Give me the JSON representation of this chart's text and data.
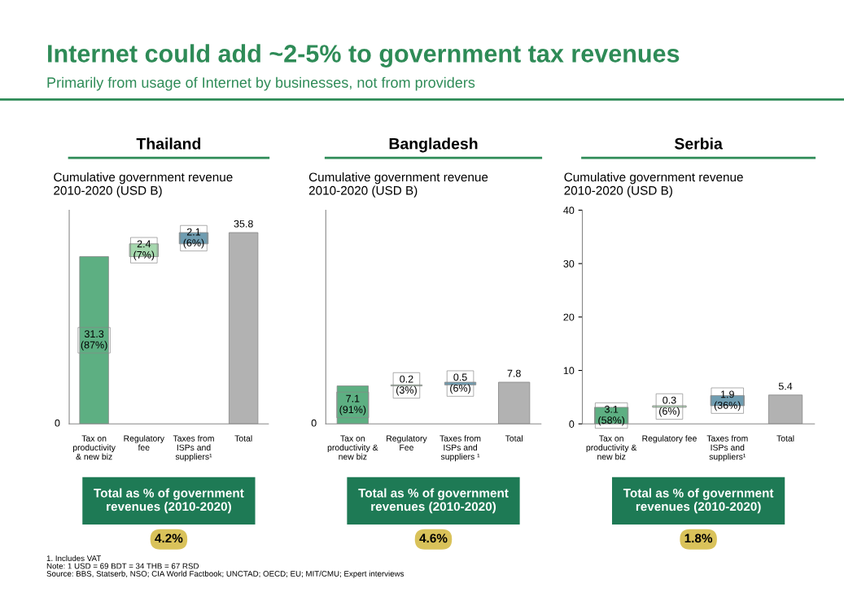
{
  "chart_data": [
    {
      "type": "other",
      "title": "Internet could add ~2-5% to government tax revenues",
      "subtitle": "Primarily from usage of Internet by businesses, not from providers",
      "annotations": [
        "1. Includes VAT",
        "Note: 1 USD = 69 BDT = 34 THB = 67 RSD",
        "Source: BBS, Statserb, NSO; CIA World Factbook; UNCTAD; OECD; EU; MIT/CMU; Expert interviews"
      ]
    },
    {
      "type": "bar",
      "title": "Thailand",
      "subtitle": "Cumulative government revenue\n2010-2020 (USD B)",
      "categories": [
        "Tax on\nproductivity\n& new biz",
        "Regulatory\nfee",
        "Taxes from\nISPs and\nsuppliers¹",
        "Total"
      ],
      "values": [
        31.3,
        2.4,
        2.1,
        35.8
      ],
      "base": [
        0,
        31.3,
        33.7,
        0
      ],
      "colors": [
        "#5daf82",
        "#a6d8ae",
        "#6f9db1",
        "#b2b2b2"
      ],
      "value_labels": [
        "31.3\n(87%)",
        "2.4\n(7%)",
        "2.1\n(6%)",
        "35.8"
      ],
      "ylim": [
        0,
        40
      ],
      "tick_labels": "x",
      "annotations": [
        "Total as % of government\nrevenues (2010-2020)",
        "4.2%",
        "0"
      ]
    },
    {
      "type": "bar",
      "title": "Bangladesh",
      "subtitle": "Cumulative government revenue\n2010-2020 (USD B)",
      "categories": [
        "Tax on\nproductivity &\nnew biz",
        "Regulatory\nFee",
        "Taxes from\nISPs and\nsuppliers ¹",
        "Total"
      ],
      "values": [
        7.1,
        0.2,
        0.5,
        7.8
      ],
      "base": [
        0,
        7.1,
        7.3,
        0
      ],
      "colors": [
        "#5daf82",
        "#a6d8ae",
        "#6f9db1",
        "#b2b2b2"
      ],
      "value_labels": [
        "7.1\n(91%)",
        "0.2\n(3%)",
        "0.5\n(6%)",
        "7.8"
      ],
      "ylim": [
        0,
        40
      ],
      "tick_labels": "x",
      "annotations": [
        "Total as % of government\nrevenues (2010-2020)",
        "4.6%",
        "0"
      ]
    },
    {
      "type": "bar",
      "title": "Serbia",
      "subtitle": "Cumulative government revenue\n2010-2020 (USD B)",
      "categories": [
        "Tax on\nproductivity &\nnew biz",
        "Regulatory fee",
        "Taxes from\nISPs and\nsuppliers¹",
        "Total"
      ],
      "values": [
        3.1,
        0.3,
        1.9,
        5.4
      ],
      "base": [
        0,
        3.1,
        3.4,
        0
      ],
      "colors": [
        "#5daf82",
        "#b5deba",
        "#6f9db1",
        "#b2b2b2"
      ],
      "value_labels": [
        "3.1\n(58%)",
        "0.3\n(6%)",
        "1.9\n(36%)",
        "5.4"
      ],
      "ylim": [
        0,
        40
      ],
      "yticks": [
        0,
        10,
        20,
        30,
        40
      ],
      "annotations": [
        "Total as % of government\nrevenues (2010-2020)",
        "1.8%"
      ]
    }
  ]
}
